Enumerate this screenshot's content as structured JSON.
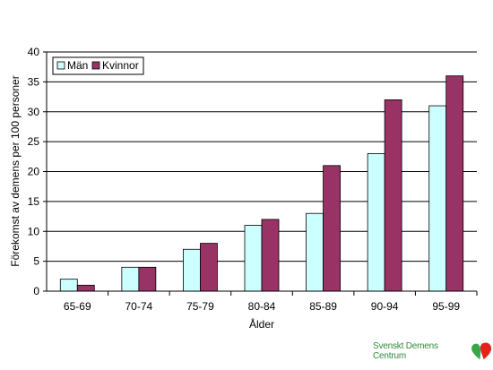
{
  "chart_data": {
    "type": "bar",
    "categories": [
      "65-69",
      "70-74",
      "75-79",
      "80-84",
      "85-89",
      "90-94",
      "95-99"
    ],
    "series": [
      {
        "name": "Män",
        "values": [
          2,
          4,
          7,
          11,
          13,
          23,
          31
        ],
        "color": "#ccffff"
      },
      {
        "name": "Kvinnor",
        "values": [
          1,
          4,
          8,
          12,
          21,
          32,
          36
        ],
        "color": "#993366"
      }
    ],
    "title": "",
    "xlabel": "Ålder",
    "ylabel": "Förekomst av demens per 100 personer",
    "ylim": [
      0,
      40
    ],
    "yticks": [
      0,
      5,
      10,
      15,
      20,
      25,
      30,
      35,
      40
    ],
    "grid": true,
    "legend_position": "top-left"
  },
  "brand": {
    "text": "Svenskt Demens Centrum",
    "logo_icon": "red-green-heart-logo"
  }
}
